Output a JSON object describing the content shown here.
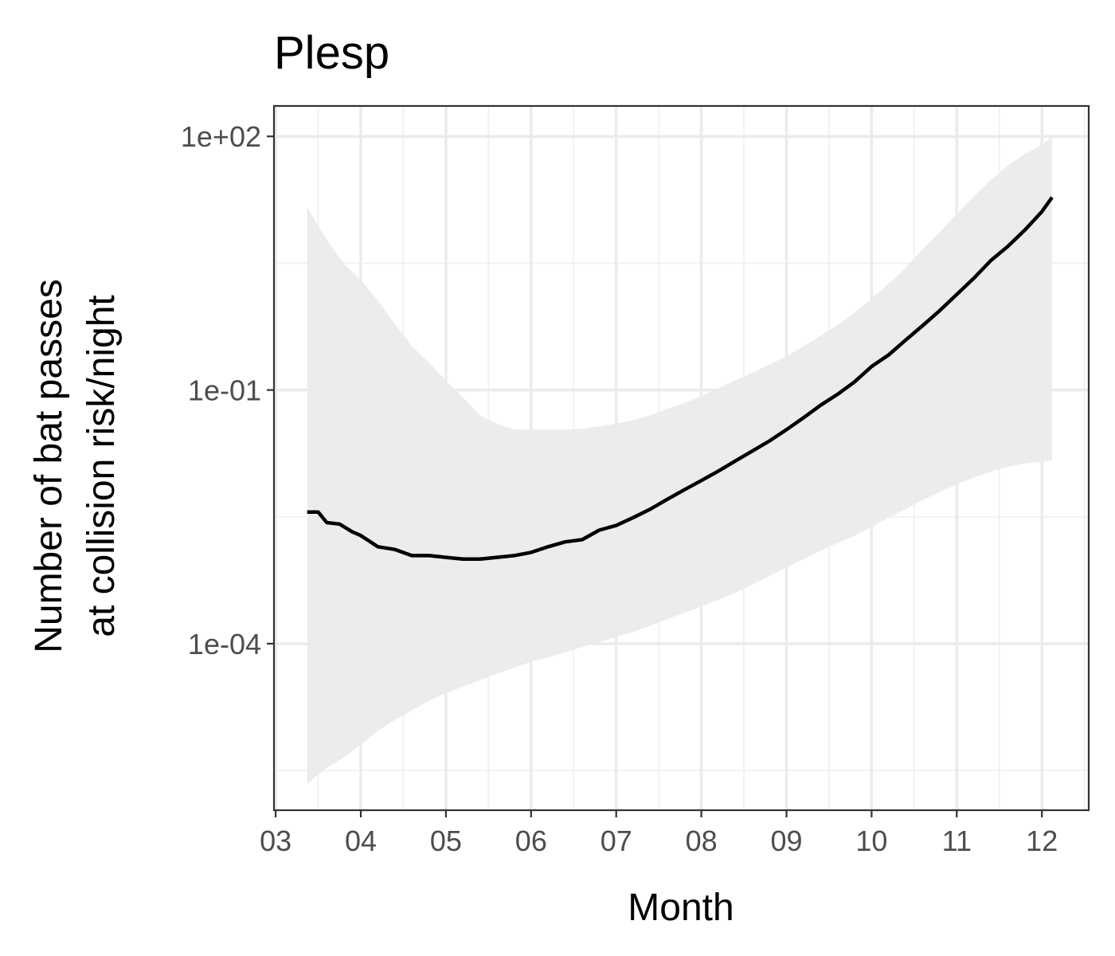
{
  "chart_data": {
    "type": "line",
    "title": "Plesp",
    "xlabel": "Month",
    "ylabel": [
      "Number of bat passes",
      "at collision risk/night"
    ],
    "x_ticks": [
      "03",
      "04",
      "05",
      "06",
      "07",
      "08",
      "09",
      "10",
      "11",
      "12"
    ],
    "y_ticks": [
      "1e+02",
      "1e-01",
      "1e-04"
    ],
    "y_scale": "log10",
    "x_range": [
      2.98,
      12.55
    ],
    "y_range_log10": [
      -5.97,
      2.36
    ],
    "grid": true,
    "series": [
      {
        "x": [
          3.37,
          3.5,
          3.6,
          3.75,
          3.9,
          4.0,
          4.2,
          4.4,
          4.6,
          4.8,
          5.0,
          5.2,
          5.4,
          5.6,
          5.8,
          6.0,
          6.2,
          6.4,
          6.6,
          6.8,
          7.0,
          7.2,
          7.4,
          7.6,
          7.8,
          8.0,
          8.2,
          8.4,
          8.6,
          8.8,
          9.0,
          9.2,
          9.4,
          9.6,
          9.8,
          10.0,
          10.2,
          10.4,
          10.6,
          10.8,
          11.0,
          11.2,
          11.4,
          11.6,
          11.8,
          12.0,
          12.12
        ],
        "y": [
          0.0036,
          0.0036,
          0.0027,
          0.0026,
          0.0021,
          0.0019,
          0.0014,
          0.0013,
          0.0011,
          0.0011,
          0.00105,
          0.001,
          0.001,
          0.00105,
          0.0011,
          0.0012,
          0.0014,
          0.0016,
          0.0017,
          0.0022,
          0.0025,
          0.0031,
          0.0039,
          0.0051,
          0.0066,
          0.0085,
          0.011,
          0.0145,
          0.019,
          0.025,
          0.034,
          0.047,
          0.066,
          0.089,
          0.125,
          0.19,
          0.26,
          0.39,
          0.58,
          0.87,
          1.35,
          2.1,
          3.4,
          5.0,
          7.8,
          12.9,
          19.0
        ]
      }
    ],
    "band": {
      "x": [
        3.37,
        3.6,
        3.8,
        4.0,
        4.2,
        4.4,
        4.6,
        4.8,
        5.0,
        5.2,
        5.4,
        5.6,
        5.8,
        6.0,
        6.2,
        6.4,
        6.6,
        6.8,
        7.0,
        7.2,
        7.4,
        7.6,
        7.8,
        8.0,
        8.2,
        8.4,
        8.6,
        8.8,
        9.0,
        9.2,
        9.4,
        9.6,
        9.8,
        10.0,
        10.2,
        10.4,
        10.6,
        10.8,
        11.0,
        11.2,
        11.4,
        11.6,
        11.8,
        12.0,
        12.12
      ],
      "upper": [
        14.3,
        6.0,
        3.1,
        2.0,
        1.15,
        0.6,
        0.33,
        0.21,
        0.13,
        0.082,
        0.05,
        0.04,
        0.034,
        0.034,
        0.034,
        0.034,
        0.035,
        0.037,
        0.04,
        0.044,
        0.05,
        0.06,
        0.07,
        0.085,
        0.105,
        0.13,
        0.16,
        0.2,
        0.25,
        0.33,
        0.44,
        0.59,
        0.82,
        1.2,
        1.8,
        2.8,
        4.6,
        7.4,
        12.2,
        19.5,
        30.5,
        45.0,
        62.0,
        79.0,
        100.0
      ],
      "lower": [
        2.2e-06,
        3.4e-06,
        4.5e-06,
        6.4e-06,
        9.3e-06,
        1.25e-05,
        1.63e-05,
        2.1e-05,
        2.6e-05,
        3.1e-05,
        3.7e-05,
        4.4e-05,
        5.2e-05,
        6.1e-05,
        6.9e-05,
        7.9e-05,
        9.1e-05,
        0.000104,
        0.00012,
        0.000138,
        0.000163,
        0.000195,
        0.000232,
        0.000276,
        0.00033,
        0.0004,
        0.0005,
        0.00063,
        0.0008,
        0.001,
        0.00125,
        0.00155,
        0.0019,
        0.0024,
        0.0031,
        0.0039,
        0.005,
        0.0062,
        0.0077,
        0.0092,
        0.0108,
        0.0124,
        0.0135,
        0.0142,
        0.0148
      ]
    }
  },
  "colors": {
    "band": "#ebebeb",
    "line": "#000000",
    "grid_major": "#ebebeb",
    "grid_minor": "#f2f2f2",
    "border": "#333333"
  }
}
